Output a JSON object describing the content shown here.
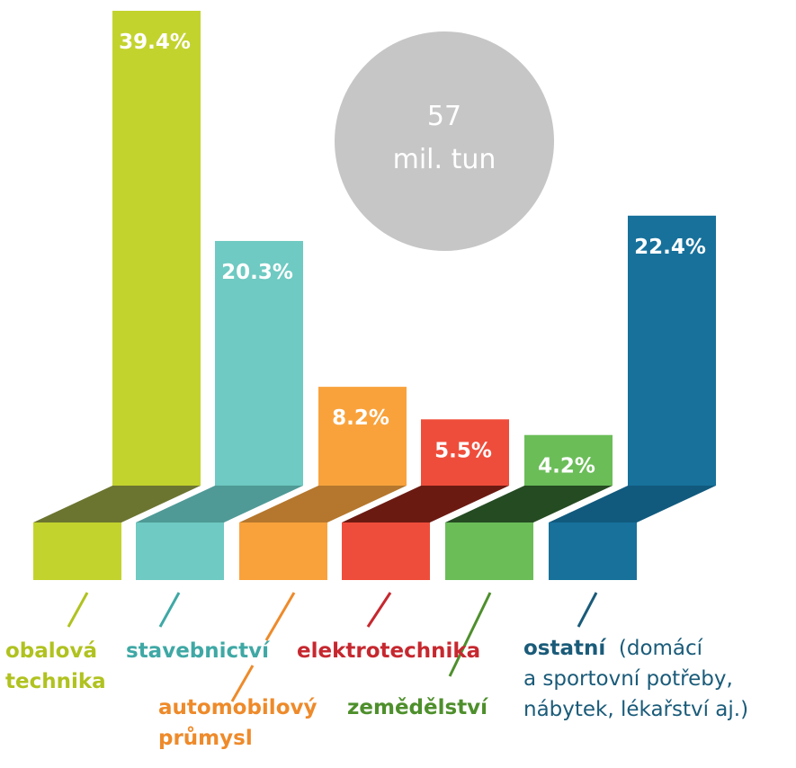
{
  "chart_data": {
    "type": "bar",
    "categories": [
      [
        "obalová",
        "technika"
      ],
      [
        "stavebnictví"
      ],
      [
        "automobilový",
        "průmysl"
      ],
      [
        "elektrotechnika"
      ],
      [
        "zemědělství"
      ],
      [
        "ostatní"
      ]
    ],
    "category_extra": [
      "",
      "",
      "",
      "",
      "",
      "(domácí"
    ],
    "category_extra_lines": [
      [],
      [],
      [],
      [],
      [],
      [
        "a sportovní potřeby,",
        "nábytek, lékařství aj.)"
      ]
    ],
    "values": [
      39.4,
      20.3,
      8.2,
      5.5,
      4.2,
      22.4
    ],
    "value_labels": [
      "39.4%",
      "20.3%",
      "8.2%",
      "5.5%",
      "4.2%",
      "22.4%"
    ],
    "total": {
      "value": "57",
      "unit": "mil. tun"
    },
    "colors": {
      "front": [
        "#c3d32e",
        "#6ecac2",
        "#f9a23c",
        "#ef4d3b",
        "#6bbd58",
        "#17719b"
      ],
      "shade": [
        "#6c7530",
        "#4f9a96",
        "#b5772d",
        "#6b1a12",
        "#254b22",
        "#115a7e"
      ],
      "label": [
        "#b0c21f",
        "#3fa8a5",
        "#ee8a2a",
        "#c6282f",
        "#4e8f2c",
        "#1a5b79"
      ],
      "circle": "#c6c6c6"
    }
  }
}
